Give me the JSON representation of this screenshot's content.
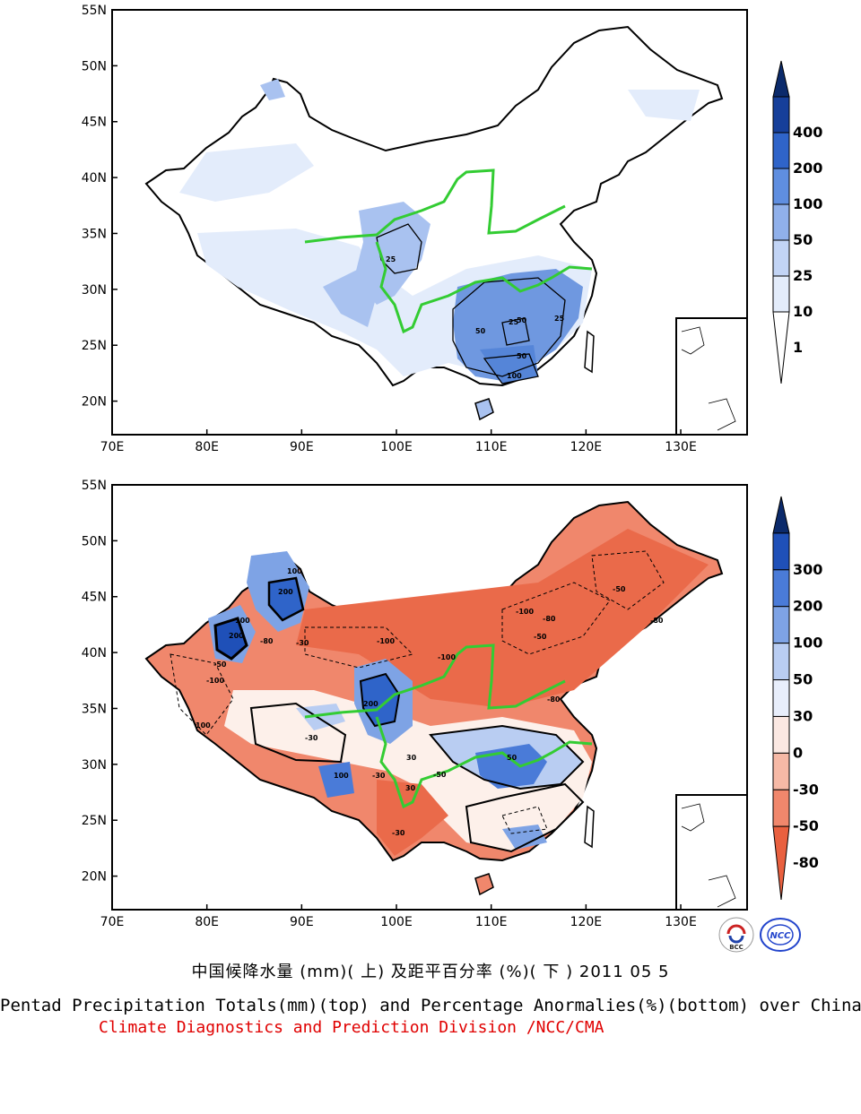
{
  "figure": {
    "title_cn": "中国候降水量 (mm)( 上) 及距平百分率 (%)( 下 ) 2011 05 5",
    "title_en": "Pentad Precipitation Totals(mm)(top) and Percentage Anormalies(%)(bottom) over China",
    "credit": "Climate Diagnostics and Prediction Division /NCC/CMA",
    "logos": [
      "BCC",
      "NCC"
    ]
  },
  "axes": {
    "lon_labels": [
      "70E",
      "80E",
      "90E",
      "100E",
      "110E",
      "120E",
      "130E"
    ],
    "lat_labels": [
      "55N",
      "50N",
      "45N",
      "40N",
      "35N",
      "30N",
      "25N",
      "20N"
    ],
    "lon_range": [
      70,
      137
    ],
    "lat_range": [
      17,
      55
    ]
  },
  "top_panel": {
    "colorbar_labels": [
      "400",
      "200",
      "100",
      "50",
      "25",
      "10",
      "1"
    ],
    "colorbar_colors": [
      "#0b2a6b",
      "#163f9a",
      "#2f64c9",
      "#5f8ee0",
      "#90b0ea",
      "#c2d4f5",
      "#e3ecfb",
      "#ffffff"
    ],
    "contour_labels": [
      "25",
      "50",
      "25",
      "25",
      "50",
      "50",
      "100"
    ]
  },
  "bottom_panel": {
    "colorbar_labels": [
      "300",
      "200",
      "100",
      "50",
      "30",
      "0",
      "-30",
      "-50",
      "-80"
    ],
    "colorbar_colors": [
      "#0b2a6b",
      "#1f50b8",
      "#4a7bd8",
      "#7ea3e5",
      "#b9cdf2",
      "#e8eefb",
      "#fbe8e2",
      "#f6b9a6",
      "#f0876c",
      "#e9603f"
    ],
    "contour_labels": [
      "200",
      "100",
      "200",
      "100",
      "-100",
      "-50",
      "-80",
      "-30",
      "100",
      "200",
      "-100",
      "-80",
      "-50",
      "-100",
      "-80",
      "-50",
      "30",
      "-50",
      "-30",
      "30",
      "-30",
      "50",
      "100",
      "-100",
      "-80",
      "-30"
    ]
  }
}
